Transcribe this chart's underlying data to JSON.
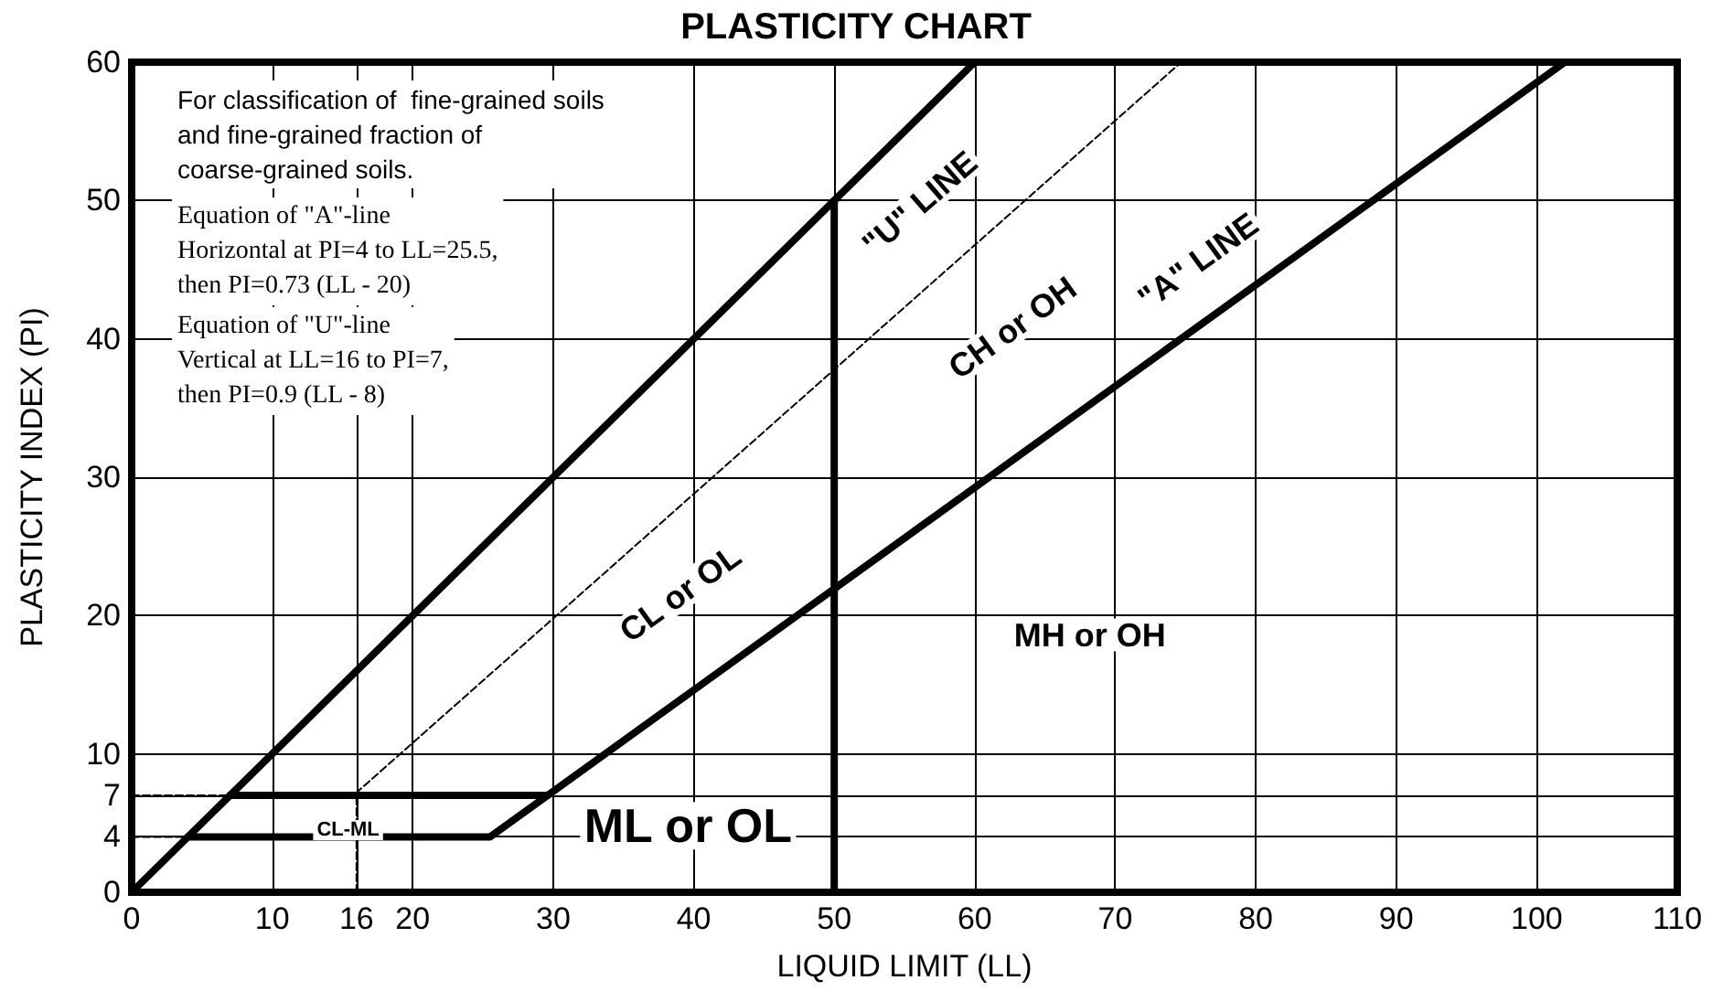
{
  "chart_data": {
    "type": "line",
    "title": "PLASTICITY CHART",
    "xlabel": "LIQUID LIMIT (LL)",
    "ylabel": "PLASTICITY INDEX (PI)",
    "xlim": [
      0,
      110
    ],
    "xticks": [
      0,
      10,
      {
        "value": 16,
        "label": "16"
      },
      20,
      30,
      40,
      50,
      60,
      70,
      80,
      90,
      100,
      110
    ],
    "ylim": [
      0,
      60
    ],
    "yticks": [
      0,
      4,
      7,
      10,
      20,
      30,
      40,
      50,
      60
    ],
    "grid": true,
    "marker": "none",
    "series": [
      {
        "color": "#000000",
        "line_style": "solid",
        "x": [
          0,
          60
        ],
        "values": [
          0,
          60
        ]
      },
      {
        "color": "#000000",
        "line_style": "solid",
        "x": [
          4,
          25.5,
          102
        ],
        "values": [
          4,
          4,
          60
        ]
      },
      {
        "color": "#000000",
        "line_style": "solid",
        "x": [
          7,
          29.6
        ],
        "values": [
          7,
          7
        ]
      },
      {
        "color": "#000000",
        "line_style": "solid",
        "x": [
          50,
          50
        ],
        "values": [
          0,
          50
        ]
      },
      {
        "color": "#000000",
        "line_style": "dashed",
        "x": [
          16,
          16,
          74.7
        ],
        "values": [
          0,
          7.2,
          60
        ]
      },
      {
        "color": "#000000",
        "line_style": "dashed",
        "x": [
          0,
          7
        ],
        "values": [
          7,
          7
        ]
      },
      {
        "color": "#000000",
        "line_style": "dashed",
        "x": [
          0,
          4
        ],
        "values": [
          4,
          4
        ]
      }
    ],
    "annotations": [
      "For classification of  fine-grained soils\nand fine-grained fraction of\ncoarse-grained soils.",
      "Equation of \"A\"-line\nHorizontal at PI=4 to LL=25.5,\nthen PI=0.73 (LL - 20)",
      "Equation of \"U\"-line\nVertical at LL=16 to PI=7,\nthen PI=0.9 (LL - 8)",
      "\"U\" LINE",
      "\"A\" LINE",
      "CH or OH",
      "CL or OL",
      "MH or OH",
      "ML or OL",
      "CL-ML"
    ]
  }
}
